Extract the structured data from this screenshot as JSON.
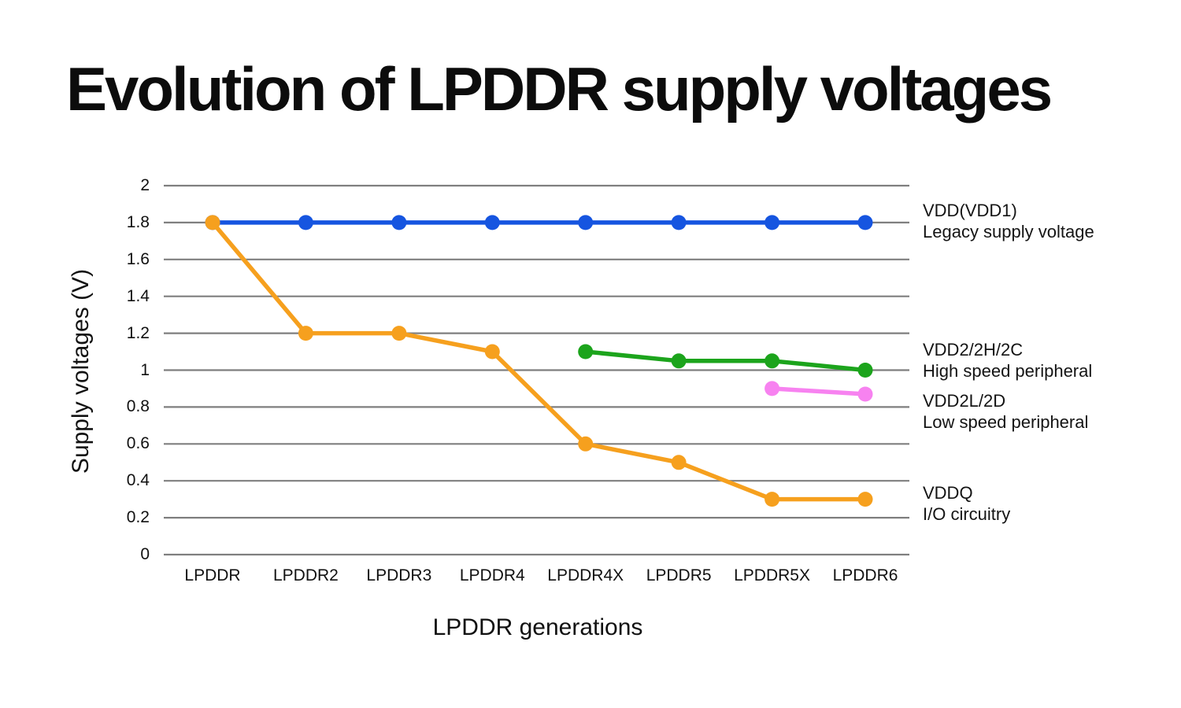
{
  "chart_data": {
    "type": "line",
    "title": "Evolution of LPDDR supply voltages",
    "xlabel": "LPDDR generations",
    "ylabel": "Supply voltages (V)",
    "categories": [
      "LPDDR",
      "LPDDR2",
      "LPDDR3",
      "LPDDR4",
      "LPDDR4X",
      "LPDDR5",
      "LPDDR5X",
      "LPDDR6"
    ],
    "ylim": [
      0,
      2
    ],
    "ytick_interval": 0.2,
    "ytick_labels": [
      "2",
      "1.8",
      "1.6",
      "1.4",
      "1.2",
      "1",
      "0.8",
      "0.6",
      "0.4",
      "0.2",
      "0"
    ],
    "grid": true,
    "legend_position": "right-annotations",
    "series": [
      {
        "name": "VDD(VDD1)",
        "description": "Legacy supply voltage",
        "color": "#1655E0",
        "values": [
          1.8,
          1.8,
          1.8,
          1.8,
          1.8,
          1.8,
          1.8,
          1.8
        ]
      },
      {
        "name": "VDD2/2H/2C",
        "description": "High speed peripheral",
        "color": "#1CA41C",
        "values": [
          null,
          null,
          null,
          null,
          1.1,
          1.05,
          1.05,
          1.0
        ]
      },
      {
        "name": "VDD2L/2D",
        "description": "Low speed peripheral",
        "color": "#F782F0",
        "values": [
          null,
          null,
          null,
          null,
          null,
          null,
          0.9,
          0.87
        ]
      },
      {
        "name": "VDDQ",
        "description": "I/O circuitry",
        "color": "#F6A01E",
        "values": [
          1.8,
          1.2,
          1.2,
          1.1,
          0.6,
          0.5,
          0.3,
          0.3
        ]
      }
    ],
    "colors": {
      "gridline": "#7f7f7f",
      "background": "#ffffff",
      "text": "#111111"
    }
  }
}
